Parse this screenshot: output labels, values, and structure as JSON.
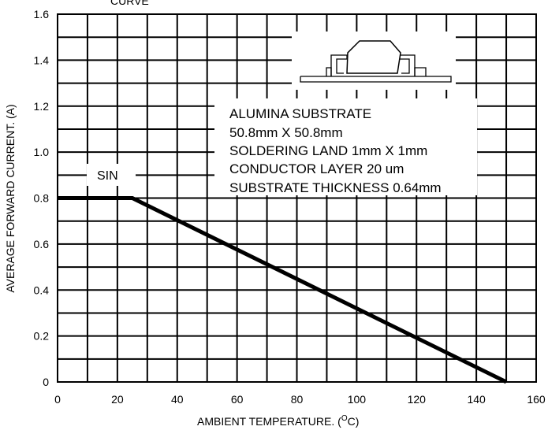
{
  "chart_data": {
    "type": "line",
    "title": "CURVE",
    "xlabel": "AMBIENT  TEMPERATURE. (",
    "xlabel_sup": "O",
    "xlabel_tail": "C)",
    "ylabel": "AVERAGE FORWARD CURRENT. (A)",
    "xlim": [
      0,
      160
    ],
    "ylim": [
      0,
      1.6
    ],
    "x_ticks": [
      "0",
      "20",
      "40",
      "60",
      "80",
      "100",
      "120",
      "140",
      "160"
    ],
    "y_ticks": [
      "0",
      "0.2",
      "0.4",
      "0.6",
      "0.8",
      "1.0",
      "1.2",
      "1.4",
      "1.6"
    ],
    "grid": true,
    "series": [
      {
        "name": "SIN",
        "x": [
          0,
          25,
          150
        ],
        "y": [
          0.8,
          0.8,
          0
        ]
      }
    ],
    "annotation_lines": [
      "ALUMINA SUBSTRATE",
      "50.8mm X 50.8mm",
      "SOLDERING LAND 1mm X 1mm",
      "CONDUCTOR LAYER 20 um",
      "SUBSTRATE THICKNESS 0.64mm"
    ]
  }
}
